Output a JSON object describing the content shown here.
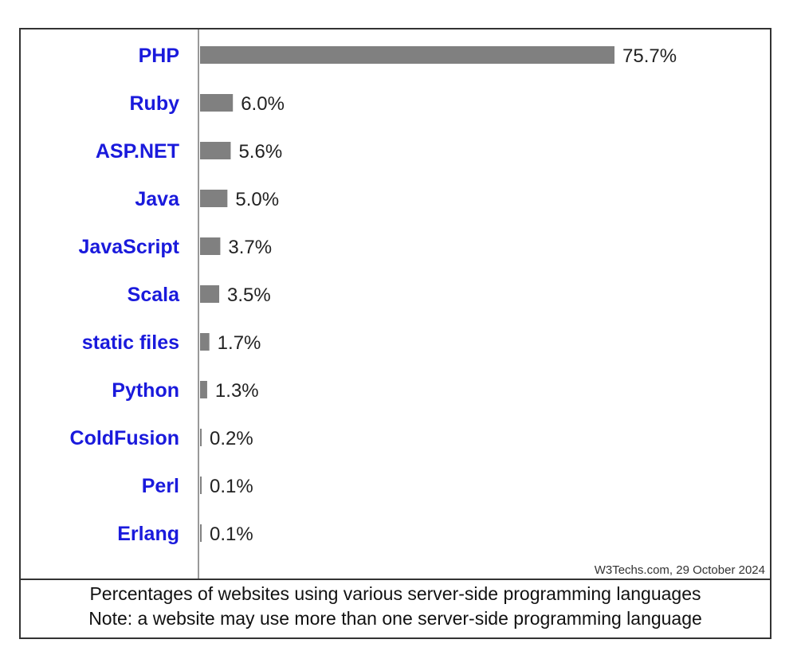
{
  "colors": {
    "bar": "#808080",
    "category_label": "#1a1adc",
    "value_label": "#222222",
    "frame": "#333333"
  },
  "chart_data": {
    "type": "bar",
    "orientation": "horizontal",
    "categories": [
      "PHP",
      "Ruby",
      "ASP.NET",
      "Java",
      "JavaScript",
      "Scala",
      "static files",
      "Python",
      "ColdFusion",
      "Perl",
      "Erlang"
    ],
    "values": [
      75.7,
      6.0,
      5.6,
      5.0,
      3.7,
      3.5,
      1.7,
      1.3,
      0.2,
      0.1,
      0.1
    ],
    "value_labels": [
      "75.7%",
      "6.0%",
      "5.6%",
      "5.0%",
      "3.7%",
      "3.5%",
      "1.7%",
      "1.3%",
      "0.2%",
      "0.1%",
      "0.1%"
    ],
    "unit": "%",
    "xlim": [
      0,
      100
    ],
    "grid": false,
    "legend": "none",
    "source": "W3Techs.com, 29 October 2024",
    "caption_line1": "Percentages of websites using various server-side programming languages",
    "caption_line2": "Note: a website may use more than one server-side programming language"
  }
}
